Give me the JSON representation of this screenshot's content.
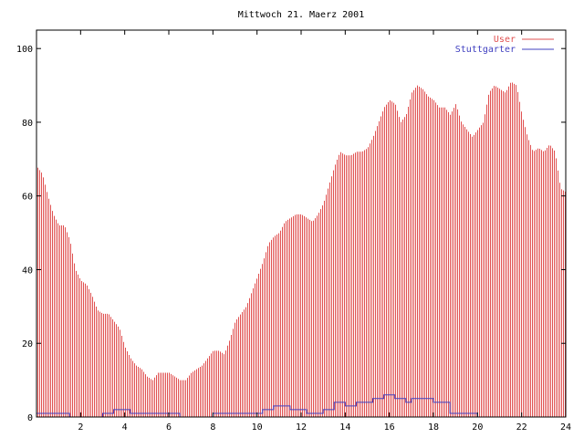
{
  "chart_data": {
    "type": "bar",
    "title": "Mittwoch 21. Maerz 2001",
    "xlim": [
      0,
      24
    ],
    "ylim": [
      0,
      105
    ],
    "xticks": [
      2,
      4,
      6,
      8,
      10,
      12,
      14,
      16,
      18,
      20,
      22,
      24
    ],
    "xtick_labels": [
      "2",
      "4",
      "6",
      "8",
      "10",
      "12",
      "14",
      "16",
      "18",
      "20",
      "22",
      "24"
    ],
    "yticks": [
      0,
      20,
      40,
      60,
      80,
      100
    ],
    "ytick_labels": [
      "0",
      "20",
      "40",
      "60",
      "80",
      "100"
    ],
    "legend_position": "top-right",
    "grid": false,
    "series": [
      {
        "name": "User",
        "color": "#e05050",
        "style": "impulses",
        "points": [
          [
            0,
            68
          ],
          [
            0.25,
            66
          ],
          [
            0.5,
            60
          ],
          [
            0.75,
            55
          ],
          [
            1.0,
            52
          ],
          [
            1.25,
            52
          ],
          [
            1.5,
            48
          ],
          [
            1.75,
            40
          ],
          [
            2.0,
            37
          ],
          [
            2.25,
            36
          ],
          [
            2.5,
            33
          ],
          [
            2.75,
            29
          ],
          [
            3.0,
            28
          ],
          [
            3.25,
            28
          ],
          [
            3.5,
            26
          ],
          [
            3.75,
            24
          ],
          [
            4.0,
            19
          ],
          [
            4.25,
            16
          ],
          [
            4.5,
            14
          ],
          [
            4.75,
            13
          ],
          [
            5.0,
            11
          ],
          [
            5.25,
            10
          ],
          [
            5.5,
            12
          ],
          [
            5.75,
            12
          ],
          [
            6.0,
            12
          ],
          [
            6.25,
            11
          ],
          [
            6.5,
            10
          ],
          [
            6.75,
            10
          ],
          [
            7.0,
            12
          ],
          [
            7.25,
            13
          ],
          [
            7.5,
            14
          ],
          [
            7.75,
            16
          ],
          [
            8.0,
            18
          ],
          [
            8.25,
            18
          ],
          [
            8.5,
            17
          ],
          [
            8.75,
            21
          ],
          [
            9.0,
            26
          ],
          [
            9.25,
            28
          ],
          [
            9.5,
            30
          ],
          [
            9.75,
            34
          ],
          [
            10.0,
            38
          ],
          [
            10.25,
            42
          ],
          [
            10.5,
            47
          ],
          [
            10.75,
            49
          ],
          [
            11.0,
            50
          ],
          [
            11.25,
            53
          ],
          [
            11.5,
            54
          ],
          [
            11.75,
            55
          ],
          [
            12.0,
            55
          ],
          [
            12.25,
            54
          ],
          [
            12.5,
            53
          ],
          [
            12.75,
            55
          ],
          [
            13.0,
            58
          ],
          [
            13.25,
            63
          ],
          [
            13.5,
            68
          ],
          [
            13.75,
            72
          ],
          [
            14.0,
            71
          ],
          [
            14.25,
            71
          ],
          [
            14.5,
            72
          ],
          [
            14.75,
            72
          ],
          [
            15.0,
            73
          ],
          [
            15.25,
            76
          ],
          [
            15.5,
            80
          ],
          [
            15.75,
            84
          ],
          [
            16.0,
            86
          ],
          [
            16.25,
            85
          ],
          [
            16.5,
            80
          ],
          [
            16.75,
            82
          ],
          [
            17.0,
            88
          ],
          [
            17.25,
            90
          ],
          [
            17.5,
            89
          ],
          [
            17.75,
            87
          ],
          [
            18.0,
            86
          ],
          [
            18.25,
            84
          ],
          [
            18.5,
            84
          ],
          [
            18.75,
            82
          ],
          [
            19.0,
            85
          ],
          [
            19.25,
            80
          ],
          [
            19.5,
            78
          ],
          [
            19.75,
            76
          ],
          [
            20.0,
            78
          ],
          [
            20.25,
            80
          ],
          [
            20.5,
            88
          ],
          [
            20.75,
            90
          ],
          [
            21.0,
            89
          ],
          [
            21.25,
            88
          ],
          [
            21.5,
            91
          ],
          [
            21.75,
            90
          ],
          [
            22.0,
            82
          ],
          [
            22.25,
            76
          ],
          [
            22.5,
            72
          ],
          [
            22.75,
            73
          ],
          [
            23.0,
            72
          ],
          [
            23.25,
            74
          ],
          [
            23.5,
            72
          ],
          [
            23.75,
            62
          ],
          [
            24.0,
            61
          ]
        ]
      },
      {
        "name": "Stuttgarter",
        "color": "#4040c0",
        "style": "steps",
        "points": [
          [
            0,
            1
          ],
          [
            1.5,
            0
          ],
          [
            3.0,
            1
          ],
          [
            3.5,
            2
          ],
          [
            4.25,
            1
          ],
          [
            6.5,
            0
          ],
          [
            8.0,
            1
          ],
          [
            10.25,
            2
          ],
          [
            10.75,
            3
          ],
          [
            11.5,
            2
          ],
          [
            12.25,
            1
          ],
          [
            13.0,
            2
          ],
          [
            13.5,
            4
          ],
          [
            14.0,
            3
          ],
          [
            14.5,
            4
          ],
          [
            15.25,
            5
          ],
          [
            15.75,
            6
          ],
          [
            16.25,
            5
          ],
          [
            16.75,
            4
          ],
          [
            17.0,
            5
          ],
          [
            18.0,
            4
          ],
          [
            18.75,
            1
          ],
          [
            19.5,
            1
          ],
          [
            20.0,
            0
          ]
        ]
      }
    ]
  }
}
